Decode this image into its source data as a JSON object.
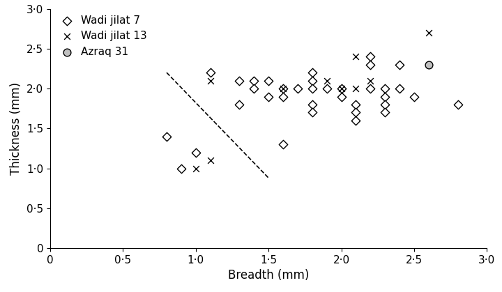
{
  "chart_data": {
    "type": "scatter",
    "x_label": "Breadth (mm)",
    "y_label": "Thickness (mm)",
    "xlim": [
      0,
      3.0
    ],
    "ylim": [
      0,
      3.0
    ],
    "xticks": [
      {
        "value": 0,
        "label": "0"
      },
      {
        "value": 0.5,
        "label": "0·5"
      },
      {
        "value": 1.0,
        "label": "1·0"
      },
      {
        "value": 1.5,
        "label": "1·5"
      },
      {
        "value": 2.0,
        "label": "2·0"
      },
      {
        "value": 2.5,
        "label": "2·5"
      },
      {
        "value": 3.0,
        "label": "3·0"
      }
    ],
    "yticks": [
      {
        "value": 0,
        "label": "0"
      },
      {
        "value": 0.5,
        "label": "0·5"
      },
      {
        "value": 1.0,
        "label": "1·0"
      },
      {
        "value": 1.5,
        "label": "1·5"
      },
      {
        "value": 2.0,
        "label": "2·0"
      },
      {
        "value": 2.5,
        "label": "2·5"
      },
      {
        "value": 3.0,
        "label": "3·0"
      }
    ],
    "legend": "upper left",
    "grid": false,
    "series": [
      {
        "name": "Wadi jilat 7",
        "type": "scatter",
        "marker": "diamond",
        "color": "#ffffff",
        "x": [
          0.8,
          0.9,
          1.0,
          1.1,
          1.3,
          1.3,
          1.4,
          1.4,
          1.5,
          1.5,
          1.6,
          1.6,
          1.6,
          1.7,
          1.8,
          1.8,
          1.8,
          1.8,
          1.8,
          1.9,
          2.0,
          2.0,
          2.1,
          2.1,
          2.1,
          2.2,
          2.2,
          2.2,
          2.3,
          2.3,
          2.3,
          2.3,
          2.4,
          2.4,
          2.5,
          2.8
        ],
        "values": [
          1.4,
          1.0,
          1.2,
          2.2,
          2.1,
          1.8,
          2.1,
          2.0,
          2.1,
          1.9,
          2.0,
          1.9,
          1.3,
          2.0,
          2.2,
          2.1,
          2.0,
          1.8,
          1.7,
          2.0,
          1.9,
          2.0,
          1.8,
          1.7,
          1.6,
          2.4,
          2.3,
          2.0,
          2.0,
          1.9,
          1.8,
          1.7,
          2.3,
          2.0,
          1.9,
          1.8
        ]
      },
      {
        "name": "Wadi jilat 13",
        "type": "scatter",
        "marker": "x",
        "color": "#000000",
        "x": [
          1.0,
          1.1,
          1.1,
          1.6,
          1.9,
          2.0,
          2.1,
          2.1,
          2.2,
          2.6
        ],
        "values": [
          1.0,
          1.1,
          2.1,
          2.0,
          2.1,
          2.0,
          2.4,
          2.0,
          2.1,
          2.7
        ]
      },
      {
        "name": "Azraq 31",
        "type": "scatter",
        "marker": "circle",
        "color": "#c0c0c0",
        "x": [
          2.6
        ],
        "values": [
          2.3
        ]
      },
      {
        "type": "line",
        "line_style": "dashed",
        "color": "#000000",
        "x": [
          0.8,
          1.5
        ],
        "values": [
          2.2,
          0.88
        ]
      }
    ]
  }
}
